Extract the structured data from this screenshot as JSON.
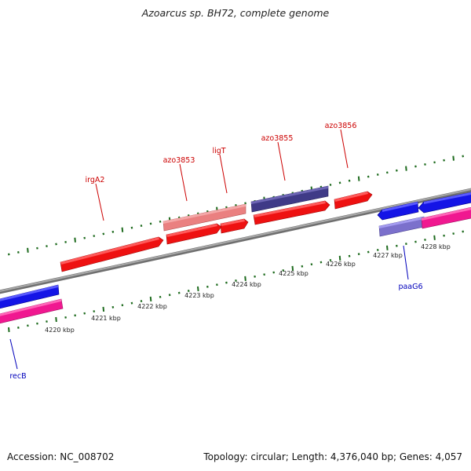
{
  "title": "Azoarcus sp. BH72, complete genome",
  "footer": {
    "accession": "Accession: NC_008702",
    "stats": "Topology: circular; Length: 4,376,040 bp; Genes: 4,057"
  },
  "tick_labels": [
    "4220 kbp",
    "4221 kbp",
    "4222 kbp",
    "4223 kbp",
    "4224 kbp",
    "4225 kbp",
    "4226 kbp",
    "4227 kbp",
    "4228 kbp"
  ],
  "genes": {
    "forward_labels": [
      "irgA2",
      "azo3853",
      "ligT",
      "azo3855",
      "azo3856"
    ],
    "reverse_labels": [
      "recB",
      "paaG6"
    ]
  },
  "colors": {
    "red_gene": "#ee1111",
    "pink_gene": "#ea8080",
    "navy_gene": "#3f3a87",
    "blue_gene": "#1414e6",
    "magenta_gene": "#f01890",
    "lavender_gene": "#7b70cc",
    "forward_label": "#cc0000",
    "reverse_label": "#0000bb",
    "tick": "#1e6b1e",
    "backbone": "#8a8a8a"
  }
}
